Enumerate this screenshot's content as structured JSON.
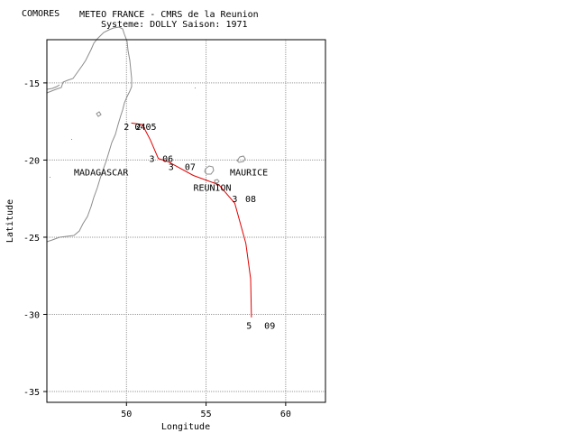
{
  "header": {
    "region": "COMORES",
    "title": "METEO FRANCE - CMRS de la Reunion",
    "subtitle": "Systeme: DOLLY  Saison: 1971"
  },
  "axes": {
    "xlabel": "Longitude",
    "ylabel": "Latitude",
    "lon_range": [
      45,
      62.5
    ],
    "lat_range": [
      -35.7,
      -12.2
    ],
    "x_ticks": [
      {
        "value": 50,
        "label": "50"
      },
      {
        "value": 55,
        "label": "55"
      },
      {
        "value": 60,
        "label": "60"
      }
    ],
    "y_ticks": [
      {
        "value": -15,
        "label": "-15"
      },
      {
        "value": -20,
        "label": "-20"
      },
      {
        "value": -25,
        "label": "-25"
      },
      {
        "value": -30,
        "label": "-30"
      },
      {
        "value": -35,
        "label": "-35"
      }
    ]
  },
  "place_labels": [
    {
      "text": "MADAGASCAR",
      "lon": 46.7,
      "lat": -21.0
    },
    {
      "text": "MAURICE",
      "lon": 56.5,
      "lat": -21.0
    },
    {
      "text": "REUNION",
      "lon": 54.2,
      "lat": -22.0
    }
  ],
  "track": {
    "color": "#e00000",
    "points": [
      {
        "lon": 50.3,
        "lat": -17.6
      },
      {
        "lon": 51.0,
        "lat": -17.7
      },
      {
        "lon": 51.5,
        "lat": -18.7
      },
      {
        "lon": 52.0,
        "lat": -19.9
      },
      {
        "lon": 52.6,
        "lat": -20.1
      },
      {
        "lon": 54.2,
        "lat": -21.0
      },
      {
        "lon": 55.8,
        "lat": -21.6
      },
      {
        "lon": 56.8,
        "lat": -22.8
      },
      {
        "lon": 57.5,
        "lat": -25.4
      },
      {
        "lon": 57.8,
        "lat": -27.7
      },
      {
        "lon": 57.85,
        "lat": -30.2
      }
    ],
    "labels": [
      {
        "text": "2",
        "lon": 50.0,
        "lat": -17.8
      },
      {
        "text": "2",
        "lon": 50.75,
        "lat": -17.8
      },
      {
        "text": "0405",
        "lon": 51.2,
        "lat": -17.8
      },
      {
        "text": "3",
        "lon": 51.6,
        "lat": -19.9
      },
      {
        "text": "06",
        "lon": 52.6,
        "lat": -19.9
      },
      {
        "text": "3",
        "lon": 52.8,
        "lat": -20.4
      },
      {
        "text": "07",
        "lon": 54.0,
        "lat": -20.4
      },
      {
        "text": "3",
        "lon": 56.8,
        "lat": -22.5
      },
      {
        "text": "08",
        "lon": 57.8,
        "lat": -22.5
      },
      {
        "text": "5",
        "lon": 57.7,
        "lat": -30.7
      },
      {
        "text": "09",
        "lon": 59.0,
        "lat": -30.7
      }
    ]
  }
}
